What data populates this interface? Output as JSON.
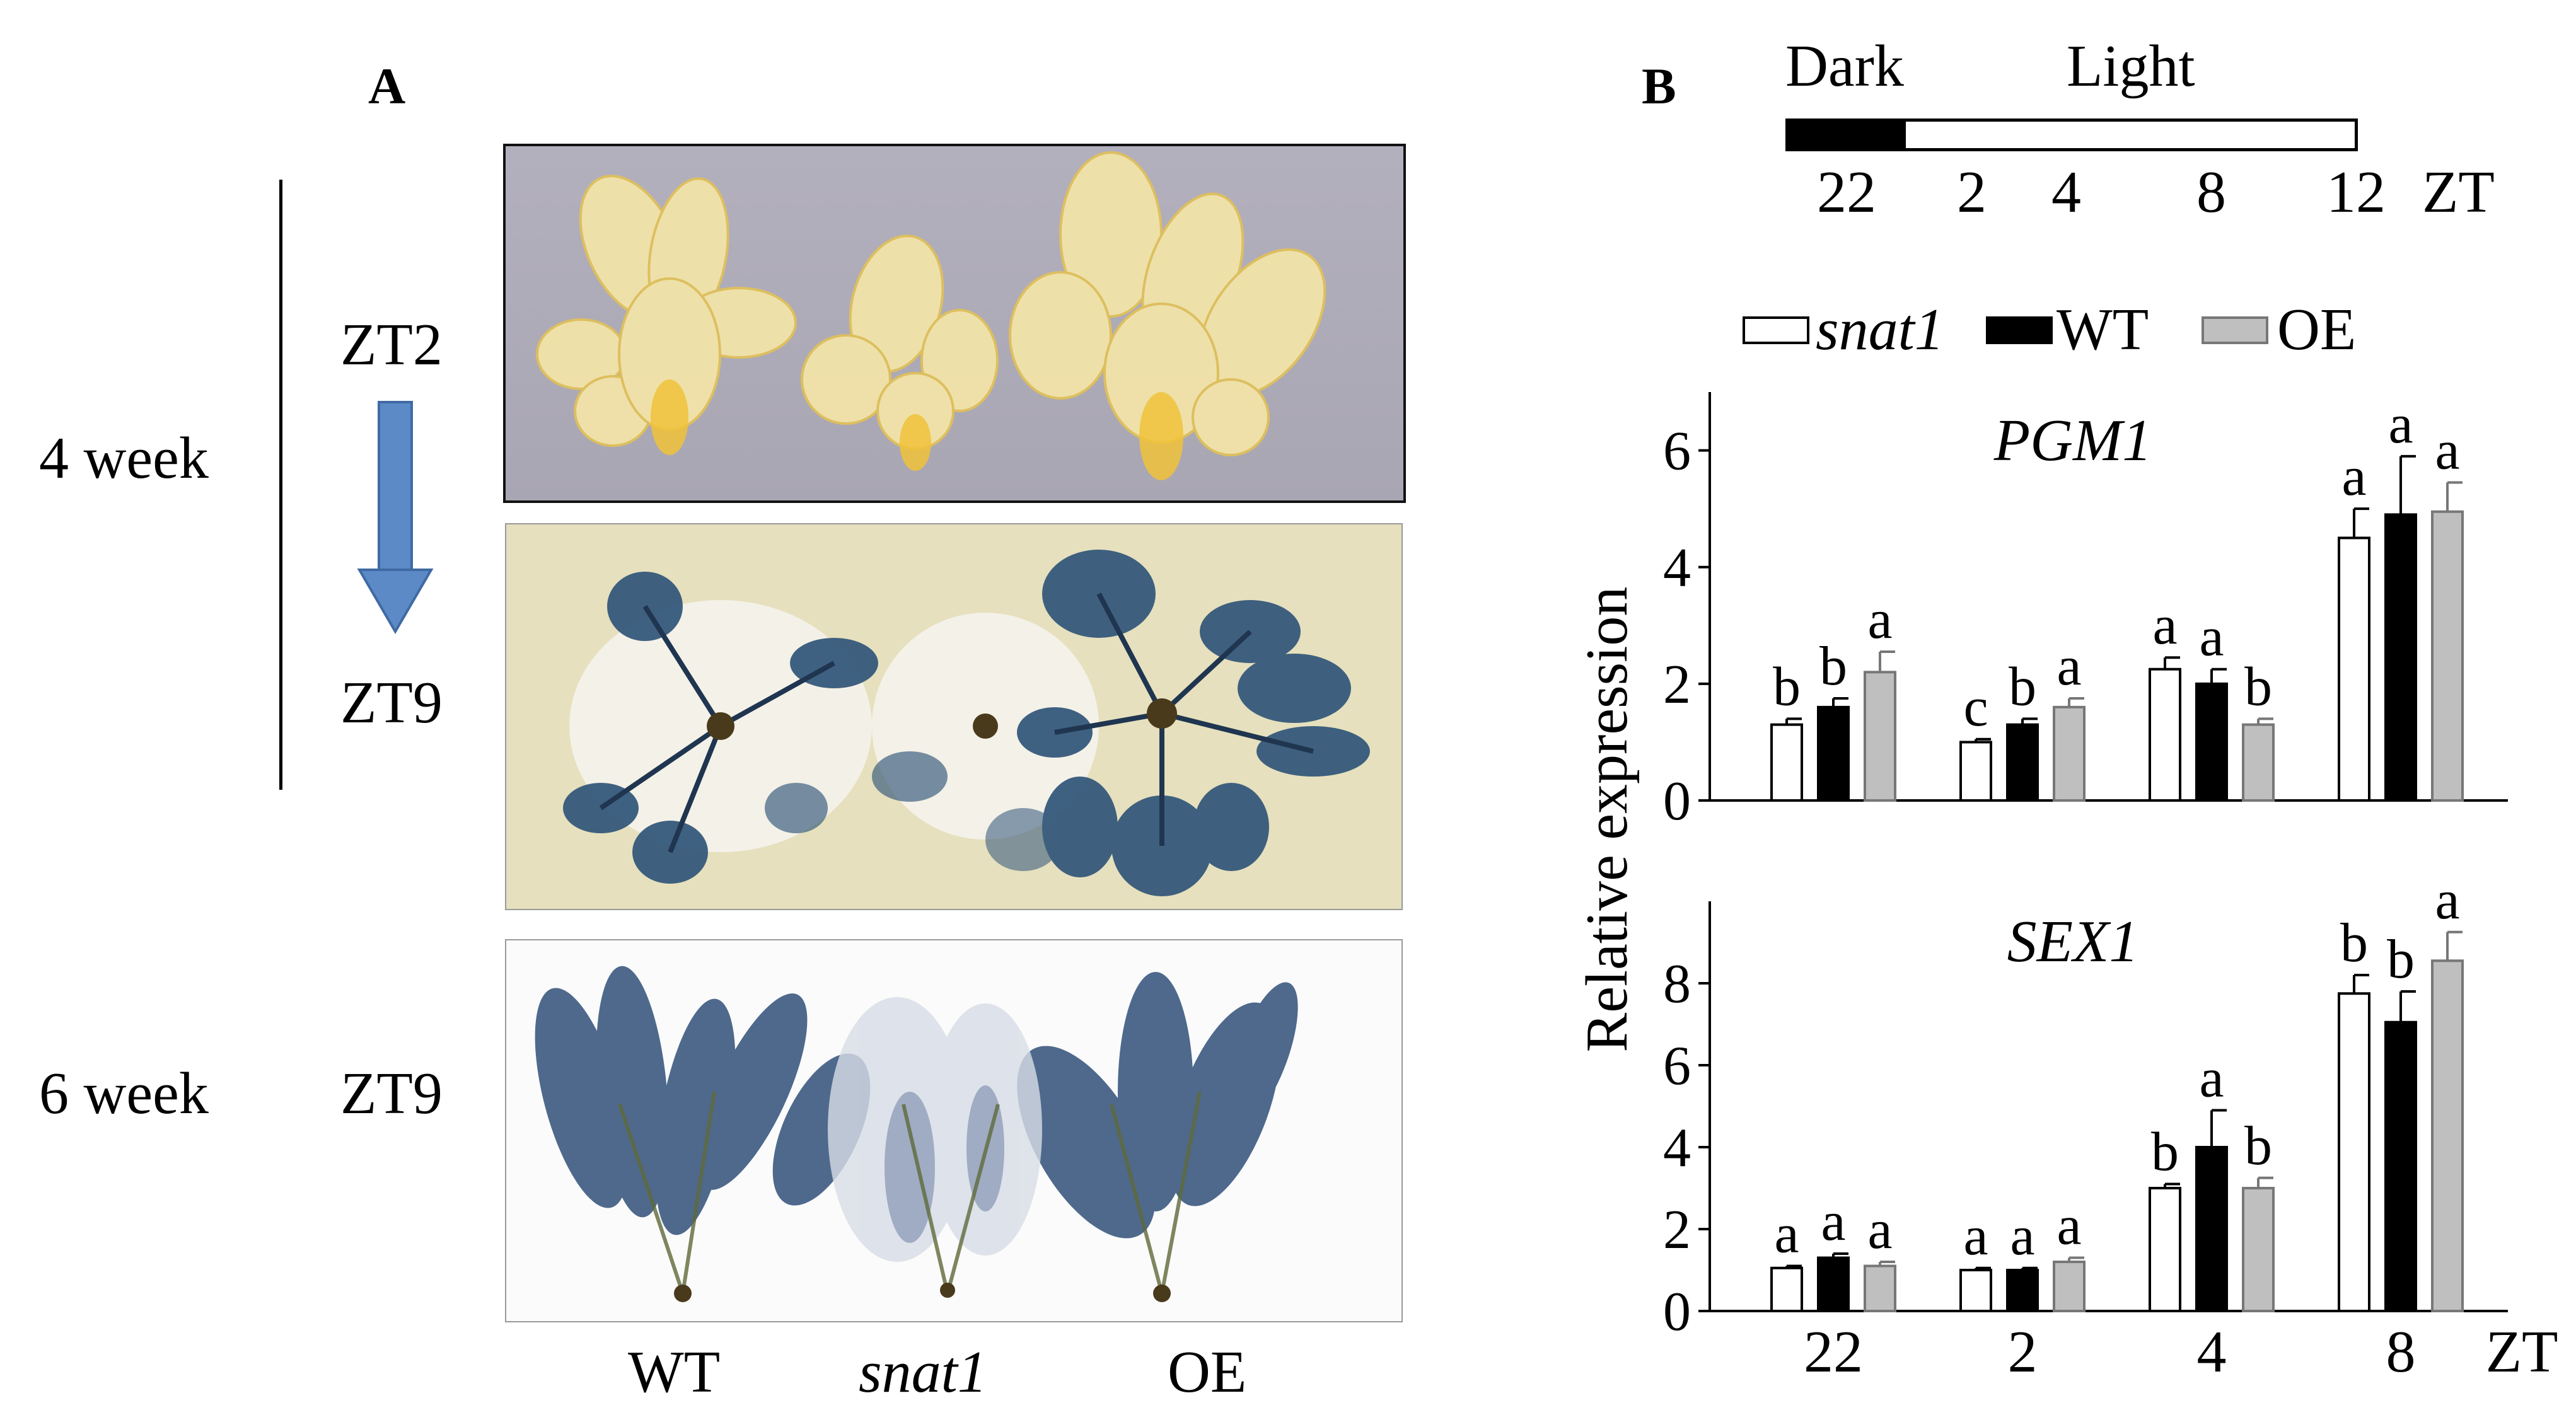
{
  "panelA": {
    "letter": "A",
    "age_4week": "4 week",
    "age_6week": "6 week",
    "zt_start": "ZT2",
    "zt_end": "ZT9",
    "zt_6week": "ZT9",
    "genotypes": [
      "WT",
      "snat1",
      "OE"
    ],
    "colors": {
      "arrow": "#5b8ac6",
      "unstained_bg": "#b7b3bf",
      "stain_blue": "#2f5478",
      "leaf_yellow": "#f4e5a6"
    }
  },
  "panelB": {
    "letter": "B",
    "timeline": {
      "dark_label": "Dark",
      "light_label": "Light",
      "ticks": [
        "22",
        "2",
        "4",
        "8",
        "12"
      ],
      "unit": "ZT"
    },
    "legend": [
      {
        "name": "snat1",
        "color": "#ffffff"
      },
      {
        "name": "WT",
        "color": "#000000"
      },
      {
        "name": "OE",
        "color": "#bfbfbf"
      }
    ],
    "y_label": "Relative expression",
    "x_unit": "ZT"
  },
  "chart_data": [
    {
      "type": "bar",
      "title": "PGM1",
      "categories": [
        "22",
        "2",
        "4",
        "8"
      ],
      "xlabel": "ZT",
      "ylabel": "Relative expression",
      "ylim": [
        0,
        7
      ],
      "yticks": [
        "0",
        "2",
        "4",
        "6"
      ],
      "series": [
        {
          "name": "snat1",
          "values": [
            1.3,
            1.0,
            2.25,
            4.5
          ],
          "errors": [
            0.1,
            0.05,
            0.2,
            0.5
          ],
          "letters": [
            "b",
            "c",
            "a",
            "a"
          ]
        },
        {
          "name": "WT",
          "values": [
            1.6,
            1.3,
            2.0,
            4.9
          ],
          "errors": [
            0.15,
            0.1,
            0.25,
            1.0
          ],
          "letters": [
            "b",
            "b",
            "a",
            "a"
          ]
        },
        {
          "name": "OE",
          "values": [
            2.2,
            1.6,
            1.3,
            4.95
          ],
          "errors": [
            0.35,
            0.15,
            0.1,
            0.5
          ],
          "letters": [
            "a",
            "a",
            "b",
            "a"
          ]
        }
      ]
    },
    {
      "type": "bar",
      "title": "SEX1",
      "categories": [
        "22",
        "2",
        "4",
        "8"
      ],
      "xlabel": "ZT",
      "ylabel": "Relative expression",
      "ylim": [
        0,
        10
      ],
      "yticks": [
        "0",
        "2",
        "4",
        "6",
        "8"
      ],
      "series": [
        {
          "name": "snat1",
          "values": [
            1.05,
            1.0,
            3.0,
            7.75
          ],
          "errors": [
            0.05,
            0.05,
            0.1,
            0.45
          ],
          "letters": [
            "a",
            "a",
            "b",
            "b"
          ]
        },
        {
          "name": "WT",
          "values": [
            1.3,
            1.0,
            4.0,
            7.05
          ],
          "errors": [
            0.1,
            0.05,
            0.9,
            0.75
          ],
          "letters": [
            "a",
            "a",
            "a",
            "b"
          ]
        },
        {
          "name": "OE",
          "values": [
            1.1,
            1.2,
            3.0,
            8.55
          ],
          "errors": [
            0.1,
            0.1,
            0.25,
            0.7
          ],
          "letters": [
            "a",
            "a",
            "b",
            "a"
          ]
        }
      ]
    }
  ]
}
